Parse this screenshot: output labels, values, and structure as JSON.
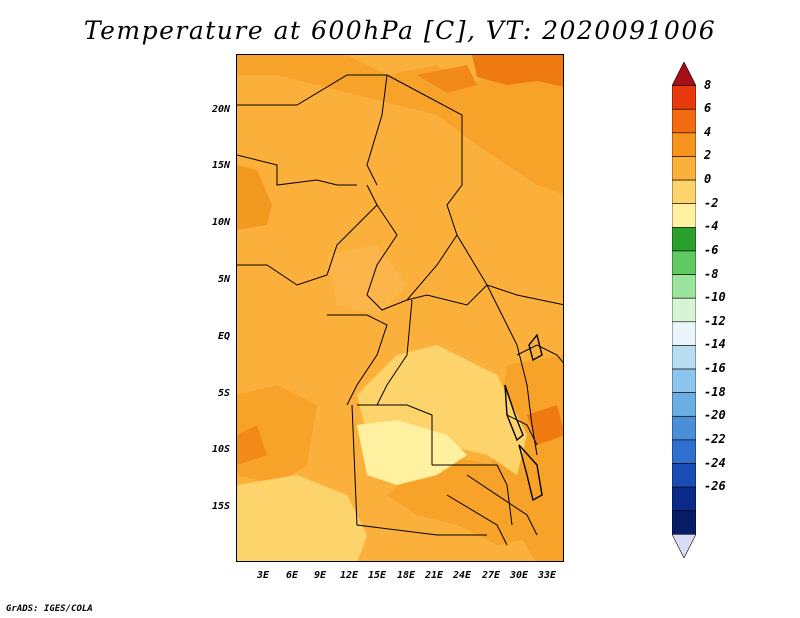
{
  "title": "Temperature at 600hPa [C], VT: 2020091006",
  "credit": "GrADS: IGES/COLA",
  "lat_labels": [
    "20N",
    "15N",
    "10N",
    "5N",
    "EQ",
    "5S",
    "10S",
    "15S"
  ],
  "lon_labels": [
    "3E",
    "6E",
    "9E",
    "12E",
    "15E",
    "18E",
    "21E",
    "24E",
    "27E",
    "30E",
    "33E"
  ],
  "colorbar": {
    "levels": [
      "8",
      "6",
      "4",
      "2",
      "0",
      "-2",
      "-4",
      "-6",
      "-8",
      "-10",
      "-12",
      "-14",
      "-16",
      "-18",
      "-20",
      "-22",
      "-24",
      "-26"
    ],
    "colors": [
      "#a50f15",
      "#e8380d",
      "#f26b10",
      "#f7941e",
      "#fbb03b",
      "#fdd36b",
      "#fff1a0",
      "#2ca02c",
      "#5fca5f",
      "#9be49b",
      "#d5f5d5",
      "#eaf6fb",
      "#b8dcf2",
      "#8ec5ec",
      "#6aaee3",
      "#4a8ed8",
      "#2f6fd0",
      "#1a4cb5",
      "#0b2a8a",
      "#071c66",
      "#d8dcf4"
    ]
  }
}
